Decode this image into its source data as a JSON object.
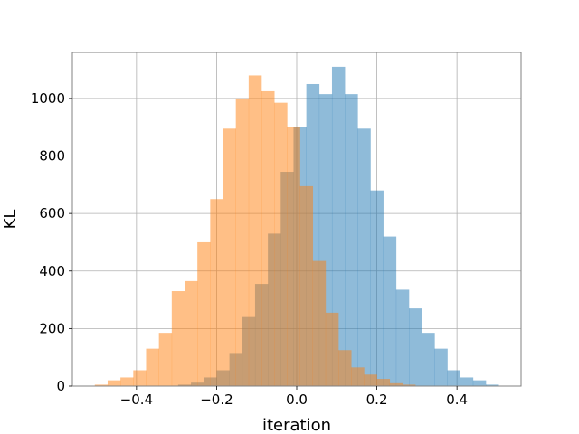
{
  "chart_data": {
    "type": "bar",
    "title": "",
    "xlabel": "iteration",
    "ylabel": "KL",
    "xlim": [
      -0.56,
      0.56
    ],
    "ylim": [
      0,
      1160
    ],
    "grid": true,
    "xticks": [
      -0.4,
      -0.2,
      0.0,
      0.2,
      0.4
    ],
    "xtick_labels": [
      "−0.4",
      "−0.2",
      "0.0",
      "0.2",
      "0.4"
    ],
    "yticks": [
      0,
      200,
      400,
      600,
      800,
      1000
    ],
    "ytick_labels": [
      "0",
      "200",
      "400",
      "600",
      "800",
      "1000"
    ],
    "bin_width": 0.032,
    "series": [
      {
        "color": "#1f77b4",
        "opacity": 0.5,
        "bin_starts": [
          -0.296,
          -0.264,
          -0.232,
          -0.2,
          -0.168,
          -0.136,
          -0.104,
          -0.072,
          -0.04,
          -0.008,
          0.024,
          0.056,
          0.088,
          0.12,
          0.152,
          0.184,
          0.216,
          0.248,
          0.28,
          0.312,
          0.344,
          0.376,
          0.408,
          0.44,
          0.472
        ],
        "values": [
          5,
          12,
          30,
          55,
          115,
          240,
          355,
          530,
          745,
          900,
          1050,
          1015,
          1110,
          1015,
          895,
          680,
          520,
          335,
          270,
          185,
          130,
          55,
          30,
          20,
          5
        ]
      },
      {
        "color": "#ff7f0e",
        "opacity": 0.5,
        "bin_starts": [
          -0.504,
          -0.472,
          -0.44,
          -0.408,
          -0.376,
          -0.344,
          -0.312,
          -0.28,
          -0.248,
          -0.216,
          -0.184,
          -0.152,
          -0.12,
          -0.088,
          -0.056,
          -0.024,
          0.008,
          0.04,
          0.072,
          0.104,
          0.136,
          0.168,
          0.2,
          0.232,
          0.264
        ],
        "values": [
          5,
          20,
          30,
          55,
          130,
          185,
          330,
          365,
          500,
          650,
          895,
          1000,
          1080,
          1025,
          985,
          900,
          695,
          435,
          255,
          125,
          65,
          40,
          25,
          10,
          5
        ]
      }
    ]
  }
}
